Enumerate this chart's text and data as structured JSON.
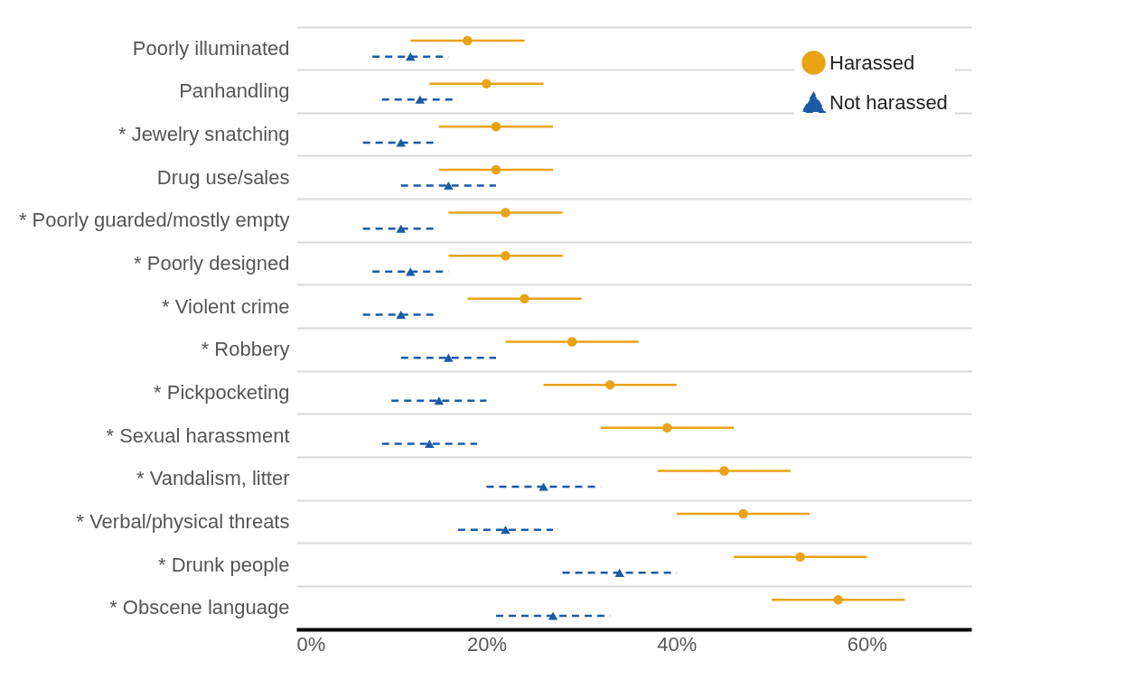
{
  "chart_data": {
    "type": "scatter",
    "orientation": "horizontal",
    "categories": [
      "Poorly illuminated",
      "Panhandling",
      "* Jewelry snatching",
      "Drug use/sales",
      "* Poorly guarded/mostly empty",
      "* Poorly designed",
      "* Violent crime",
      "* Robbery",
      "* Pickpocketing",
      "* Sexual harassment",
      "* Vandalism, litter",
      "* Verbal/physical threats",
      "* Drunk people",
      "* Obscene language"
    ],
    "series": [
      {
        "name": "Harassed",
        "color": "#e8a317",
        "marker": "circle",
        "line_style": "solid",
        "values": [
          18,
          20,
          21,
          21,
          22,
          22,
          24,
          29,
          33,
          39,
          45,
          47,
          53,
          57
        ],
        "errors": [
          [
            12,
            24
          ],
          [
            14,
            26
          ],
          [
            15,
            27
          ],
          [
            15,
            27
          ],
          [
            16,
            28
          ],
          [
            16,
            28
          ],
          [
            18,
            30
          ],
          [
            22,
            36
          ],
          [
            26,
            40
          ],
          [
            32,
            46
          ],
          [
            38,
            52
          ],
          [
            40,
            54
          ],
          [
            46,
            60
          ],
          [
            50,
            64
          ]
        ]
      },
      {
        "name": "Not harassed",
        "color": "#1a5aa6",
        "marker": "triangle",
        "line_style": "dashed",
        "values": [
          12,
          13,
          11,
          16,
          11,
          12,
          11,
          16,
          15,
          14,
          26,
          22,
          34,
          27
        ],
        "errors": [
          [
            8,
            16
          ],
          [
            9,
            17
          ],
          [
            7,
            15
          ],
          [
            11,
            21
          ],
          [
            7,
            15
          ],
          [
            8,
            16
          ],
          [
            7,
            15
          ],
          [
            11,
            21
          ],
          [
            10,
            20
          ],
          [
            9,
            19
          ],
          [
            20,
            32
          ],
          [
            17,
            27
          ],
          [
            28,
            40
          ],
          [
            21,
            33
          ]
        ]
      }
    ],
    "xlim": [
      0,
      71
    ],
    "xticks": [
      {
        "value": 0,
        "label": "0%"
      },
      {
        "value": 20,
        "label": "20%"
      },
      {
        "value": 40,
        "label": "40%"
      },
      {
        "value": 60,
        "label": "60%"
      }
    ],
    "grid": "y",
    "legend": "top right"
  }
}
